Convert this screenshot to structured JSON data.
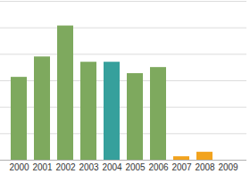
{
  "chart_data": {
    "type": "bar",
    "categories": [
      "2000",
      "2001",
      "2002",
      "2003",
      "2004",
      "2005",
      "2006",
      "2007",
      "2008",
      "2009"
    ],
    "values": [
      3.13,
      3.9,
      5.07,
      3.7,
      3.7,
      3.27,
      3.5,
      0.13,
      0.3,
      0
    ],
    "colors": [
      "#7ea95e",
      "#7ea95e",
      "#7ea95e",
      "#7ea95e",
      "#36a09c",
      "#7ea95e",
      "#7ea95e",
      "#f2a31e",
      "#f2a31e",
      "#f2a31e"
    ],
    "ylim": [
      0,
      6
    ],
    "yticks": [
      0,
      1,
      2,
      3,
      4,
      5,
      6
    ],
    "grid": true,
    "tick_labels": "x"
  }
}
